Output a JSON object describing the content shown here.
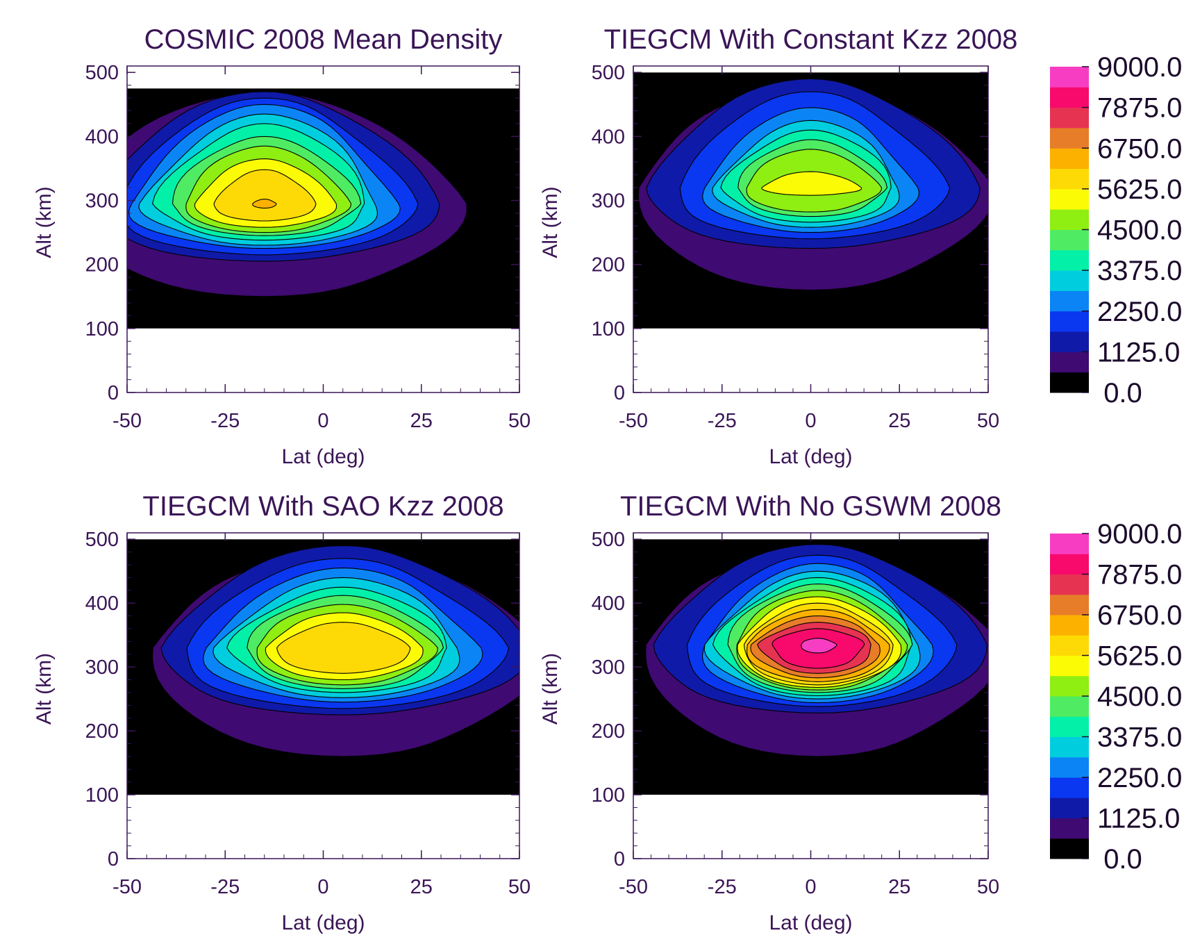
{
  "chart_data": [
    {
      "type": "heatmap",
      "title": "COSMIC  2008 Mean Density",
      "xlabel": "Lat (deg)",
      "ylabel": "Alt (km)",
      "xlim": [
        -50,
        50
      ],
      "ylim": [
        0,
        510
      ],
      "x_ticks": [
        "-50",
        "-25",
        "0",
        "25",
        "50"
      ],
      "y_ticks": [
        "0",
        "100",
        "200",
        "300",
        "400",
        "500"
      ],
      "data_extent": {
        "lat": [
          -50,
          50
        ],
        "alt": [
          100,
          475
        ]
      },
      "peak": {
        "lat": -15,
        "alt": 295,
        "value": 6300
      },
      "contour_interval": 562.5,
      "levels": [
        {
          "value": 0.0,
          "lat_halfwidth_at_peak": 50,
          "alt_low": 100,
          "alt_high": 475
        },
        {
          "value": 562.5,
          "lat_halfwidth_at_peak": 50,
          "alt_low": 150,
          "alt_high": 470
        },
        {
          "value": 1125.0,
          "lat_halfwidth_at_peak": 44,
          "alt_low": 205,
          "alt_high": 470
        },
        {
          "value": 1687.5,
          "lat_halfwidth_at_peak": 38,
          "alt_low": 215,
          "alt_high": 460
        },
        {
          "value": 2250.0,
          "lat_halfwidth_at_peak": 34,
          "alt_low": 225,
          "alt_high": 450
        },
        {
          "value": 2812.5,
          "lat_halfwidth_at_peak": 30,
          "alt_low": 230,
          "alt_high": 435
        },
        {
          "value": 3375.0,
          "lat_halfwidth_at_peak": 27,
          "alt_low": 238,
          "alt_high": 420
        },
        {
          "value": 3937.5,
          "lat_halfwidth_at_peak": 24,
          "alt_low": 245,
          "alt_high": 400
        },
        {
          "value": 4500.0,
          "lat_halfwidth_at_peak": 21,
          "alt_low": 250,
          "alt_high": 385
        },
        {
          "value": 5062.5,
          "lat_halfwidth_at_peak": 18,
          "alt_low": 258,
          "alt_high": 365
        },
        {
          "value": 5625.0,
          "lat_halfwidth_at_peak": 13,
          "alt_low": 268,
          "alt_high": 348
        },
        {
          "value": 6187.5,
          "lat_halfwidth_at_peak": 3,
          "alt_low": 288,
          "alt_high": 302
        }
      ]
    },
    {
      "type": "heatmap",
      "title": "TIEGCM With Constant Kzz  2008",
      "xlabel": "Lat (deg)",
      "ylabel": "Alt (km)",
      "xlim": [
        -50,
        50
      ],
      "ylim": [
        0,
        510
      ],
      "x_ticks": [
        "-50",
        "-25",
        "0",
        "25",
        "50"
      ],
      "y_ticks": [
        "0",
        "100",
        "200",
        "300",
        "400",
        "500"
      ],
      "data_extent": {
        "lat": [
          -50,
          50
        ],
        "alt": [
          100,
          500
        ]
      },
      "peak": {
        "lat": 0,
        "alt": 320,
        "value": 5300
      },
      "contour_interval": 562.5,
      "levels": [
        {
          "value": 0.0,
          "lat_halfwidth_at_peak": 50,
          "alt_low": 100,
          "alt_high": 500
        },
        {
          "value": 562.5,
          "lat_halfwidth_at_peak": 50,
          "alt_low": 160,
          "alt_high": 480
        },
        {
          "value": 1125.0,
          "lat_halfwidth_at_peak": 47,
          "alt_low": 225,
          "alt_high": 490
        },
        {
          "value": 1687.5,
          "lat_halfwidth_at_peak": 38,
          "alt_low": 240,
          "alt_high": 470
        },
        {
          "value": 2250.0,
          "lat_halfwidth_at_peak": 30,
          "alt_low": 250,
          "alt_high": 445
        },
        {
          "value": 2812.5,
          "lat_halfwidth_at_peak": 26,
          "alt_low": 258,
          "alt_high": 425
        },
        {
          "value": 3375.0,
          "lat_halfwidth_at_peak": 24,
          "alt_low": 266,
          "alt_high": 410
        },
        {
          "value": 3937.5,
          "lat_halfwidth_at_peak": 21,
          "alt_low": 275,
          "alt_high": 395
        },
        {
          "value": 4500.0,
          "lat_halfwidth_at_peak": 19,
          "alt_low": 282,
          "alt_high": 380
        },
        {
          "value": 5062.5,
          "lat_halfwidth_at_peak": 14,
          "alt_low": 308,
          "alt_high": 345
        }
      ]
    },
    {
      "type": "heatmap",
      "title": "TIEGCM With SAO Kzz  2008",
      "xlabel": "Lat (deg)",
      "ylabel": "Alt (km)",
      "xlim": [
        -50,
        50
      ],
      "ylim": [
        0,
        510
      ],
      "x_ticks": [
        "-50",
        "-25",
        "0",
        "25",
        "50"
      ],
      "y_ticks": [
        "0",
        "100",
        "200",
        "300",
        "400",
        "500"
      ],
      "data_extent": {
        "lat": [
          -50,
          50
        ],
        "alt": [
          100,
          500
        ]
      },
      "peak": {
        "lat": 5,
        "alt": 330,
        "value": 5900
      },
      "contour_interval": 562.5,
      "levels": [
        {
          "value": 0.0,
          "lat_halfwidth_at_peak": 50,
          "alt_low": 100,
          "alt_high": 500
        },
        {
          "value": 562.5,
          "lat_halfwidth_at_peak": 50,
          "alt_low": 160,
          "alt_high": 480
        },
        {
          "value": 1125.0,
          "lat_halfwidth_at_peak": 47,
          "alt_low": 225,
          "alt_high": 490
        },
        {
          "value": 1687.5,
          "lat_halfwidth_at_peak": 41,
          "alt_low": 235,
          "alt_high": 470
        },
        {
          "value": 2250.0,
          "lat_halfwidth_at_peak": 35,
          "alt_low": 245,
          "alt_high": 455
        },
        {
          "value": 2812.5,
          "lat_halfwidth_at_peak": 31,
          "alt_low": 252,
          "alt_high": 440
        },
        {
          "value": 3375.0,
          "lat_halfwidth_at_peak": 28,
          "alt_low": 260,
          "alt_high": 425
        },
        {
          "value": 3937.5,
          "lat_halfwidth_at_peak": 25,
          "alt_low": 266,
          "alt_high": 412
        },
        {
          "value": 4500.0,
          "lat_halfwidth_at_peak": 23,
          "alt_low": 272,
          "alt_high": 398
        },
        {
          "value": 5062.5,
          "lat_halfwidth_at_peak": 20,
          "alt_low": 280,
          "alt_high": 385
        },
        {
          "value": 5625.0,
          "lat_halfwidth_at_peak": 17,
          "alt_low": 290,
          "alt_high": 370
        }
      ]
    },
    {
      "type": "heatmap",
      "title": "TIEGCM With No GSWM 2008",
      "xlabel": "Lat (deg)",
      "ylabel": "Alt (km)",
      "xlim": [
        -50,
        50
      ],
      "ylim": [
        0,
        510
      ],
      "x_ticks": [
        "-50",
        "-25",
        "0",
        "25",
        "50"
      ],
      "y_ticks": [
        "0",
        "100",
        "200",
        "300",
        "400",
        "500"
      ],
      "data_extent": {
        "lat": [
          -50,
          50
        ],
        "alt": [
          100,
          500
        ]
      },
      "peak": {
        "lat": 2,
        "alt": 335,
        "value": 9000
      },
      "contour_interval": 562.5,
      "levels": [
        {
          "value": 0.0,
          "lat_halfwidth_at_peak": 50,
          "alt_low": 100,
          "alt_high": 500
        },
        {
          "value": 562.5,
          "lat_halfwidth_at_peak": 50,
          "alt_low": 160,
          "alt_high": 480
        },
        {
          "value": 1125.0,
          "lat_halfwidth_at_peak": 47,
          "alt_low": 228,
          "alt_high": 492
        },
        {
          "value": 1687.5,
          "lat_halfwidth_at_peak": 38,
          "alt_low": 238,
          "alt_high": 475
        },
        {
          "value": 2250.0,
          "lat_halfwidth_at_peak": 32,
          "alt_low": 244,
          "alt_high": 462
        },
        {
          "value": 2812.5,
          "lat_halfwidth_at_peak": 30,
          "alt_low": 250,
          "alt_high": 450
        },
        {
          "value": 3375.0,
          "lat_halfwidth_at_peak": 28,
          "alt_low": 255,
          "alt_high": 440
        },
        {
          "value": 3937.5,
          "lat_halfwidth_at_peak": 26,
          "alt_low": 260,
          "alt_high": 430
        },
        {
          "value": 4500.0,
          "lat_halfwidth_at_peak": 24,
          "alt_low": 264,
          "alt_high": 420
        },
        {
          "value": 5062.5,
          "lat_halfwidth_at_peak": 23,
          "alt_low": 268,
          "alt_high": 410
        },
        {
          "value": 5625.0,
          "lat_halfwidth_at_peak": 21,
          "alt_low": 272,
          "alt_high": 400
        },
        {
          "value": 6187.5,
          "lat_halfwidth_at_peak": 20,
          "alt_low": 277,
          "alt_high": 390
        },
        {
          "value": 6750.0,
          "lat_halfwidth_at_peak": 18,
          "alt_low": 283,
          "alt_high": 380
        },
        {
          "value": 7312.5,
          "lat_halfwidth_at_peak": 16,
          "alt_low": 290,
          "alt_high": 370
        },
        {
          "value": 7875.0,
          "lat_halfwidth_at_peak": 13,
          "alt_low": 298,
          "alt_high": 360
        },
        {
          "value": 8437.5,
          "lat_halfwidth_at_peak": 5,
          "alt_low": 322,
          "alt_high": 345
        }
      ]
    }
  ],
  "colorbar": {
    "labels": [
      "9000.0",
      "7875.0",
      "6750.0",
      "5625.0",
      "4500.0",
      "3375.0",
      "2250.0",
      "1125.0",
      "0.0"
    ],
    "bins": [
      {
        "min": 0.0,
        "color": "#000000"
      },
      {
        "min": 562.5,
        "color": "#3f0a72"
      },
      {
        "min": 1125.0,
        "color": "#101aa8"
      },
      {
        "min": 1687.5,
        "color": "#0a37f0"
      },
      {
        "min": 2250.0,
        "color": "#0b85f5"
      },
      {
        "min": 2812.5,
        "color": "#00cede"
      },
      {
        "min": 3375.0,
        "color": "#03f0a8"
      },
      {
        "min": 3937.5,
        "color": "#4fec63"
      },
      {
        "min": 4500.0,
        "color": "#8fee12"
      },
      {
        "min": 5062.5,
        "color": "#fbfb05"
      },
      {
        "min": 5625.0,
        "color": "#fdda05"
      },
      {
        "min": 6187.5,
        "color": "#fcb100"
      },
      {
        "min": 6750.0,
        "color": "#e77d28"
      },
      {
        "min": 7312.5,
        "color": "#e73352"
      },
      {
        "min": 7875.0,
        "color": "#f70a6c"
      },
      {
        "min": 8437.5,
        "color": "#f73ec2"
      }
    ]
  }
}
